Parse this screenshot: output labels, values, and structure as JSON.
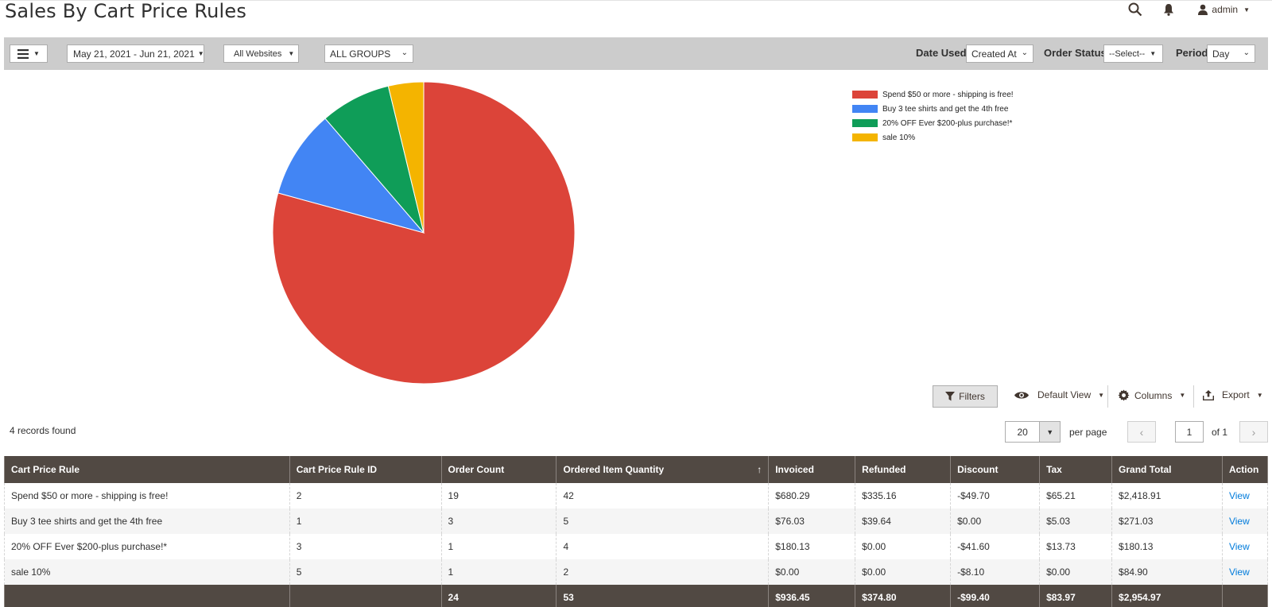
{
  "page": {
    "title": "Sales By Cart Price Rules"
  },
  "header": {
    "user": "admin"
  },
  "toolbar": {
    "date_range": "May 21, 2021 - Jun 21, 2021",
    "websites": "All Websites",
    "groups": "ALL GROUPS",
    "date_used_label": "Date Used",
    "date_used_value": "Created At",
    "order_status_label": "Order Status",
    "order_status_value": "--Select--",
    "period_label": "Period",
    "period_value": "Day"
  },
  "chart_data": {
    "type": "pie",
    "labels": [
      "Spend $50 or more - shipping is free!",
      "Buy 3 tee shirts and get the 4th free",
      "20% OFF Ever $200-plus purchase!*",
      "sale 10%"
    ],
    "values": [
      42,
      5,
      4,
      2
    ],
    "colors": [
      "#dc4439",
      "#4285f4",
      "#0f9d58",
      "#f4b400"
    ],
    "legend_position": "top-right"
  },
  "grid_actions": {
    "filters": "Filters",
    "default_view": "Default View",
    "columns": "Columns",
    "export": "Export"
  },
  "records_found": "4 records found",
  "pager": {
    "per_page_value": "20",
    "per_page_label": "per page",
    "current_page": "1",
    "of_pages": "of 1"
  },
  "table": {
    "columns": [
      "Cart Price Rule",
      "Cart Price Rule ID",
      "Order Count",
      "Ordered Item Quantity",
      "Invoiced",
      "Refunded",
      "Discount",
      "Tax",
      "Grand Total",
      "Action"
    ],
    "rows": [
      [
        "Spend $50 or more - shipping is free!",
        "2",
        "19",
        "42",
        "$680.29",
        "$335.16",
        "-$49.70",
        "$65.21",
        "$2,418.91",
        "View"
      ],
      [
        "Buy 3 tee shirts and get the 4th free",
        "1",
        "3",
        "5",
        "$76.03",
        "$39.64",
        "$0.00",
        "$5.03",
        "$271.03",
        "View"
      ],
      [
        "20% OFF Ever $200-plus purchase!*",
        "3",
        "1",
        "4",
        "$180.13",
        "$0.00",
        "-$41.60",
        "$13.73",
        "$180.13",
        "View"
      ],
      [
        "sale 10%",
        "5",
        "1",
        "2",
        "$0.00",
        "$0.00",
        "-$8.10",
        "$0.00",
        "$84.90",
        "View"
      ]
    ],
    "totals": [
      "",
      "",
      "24",
      "53",
      "$936.45",
      "$374.80",
      "-$99.40",
      "$83.97",
      "$2,954.97",
      ""
    ]
  }
}
